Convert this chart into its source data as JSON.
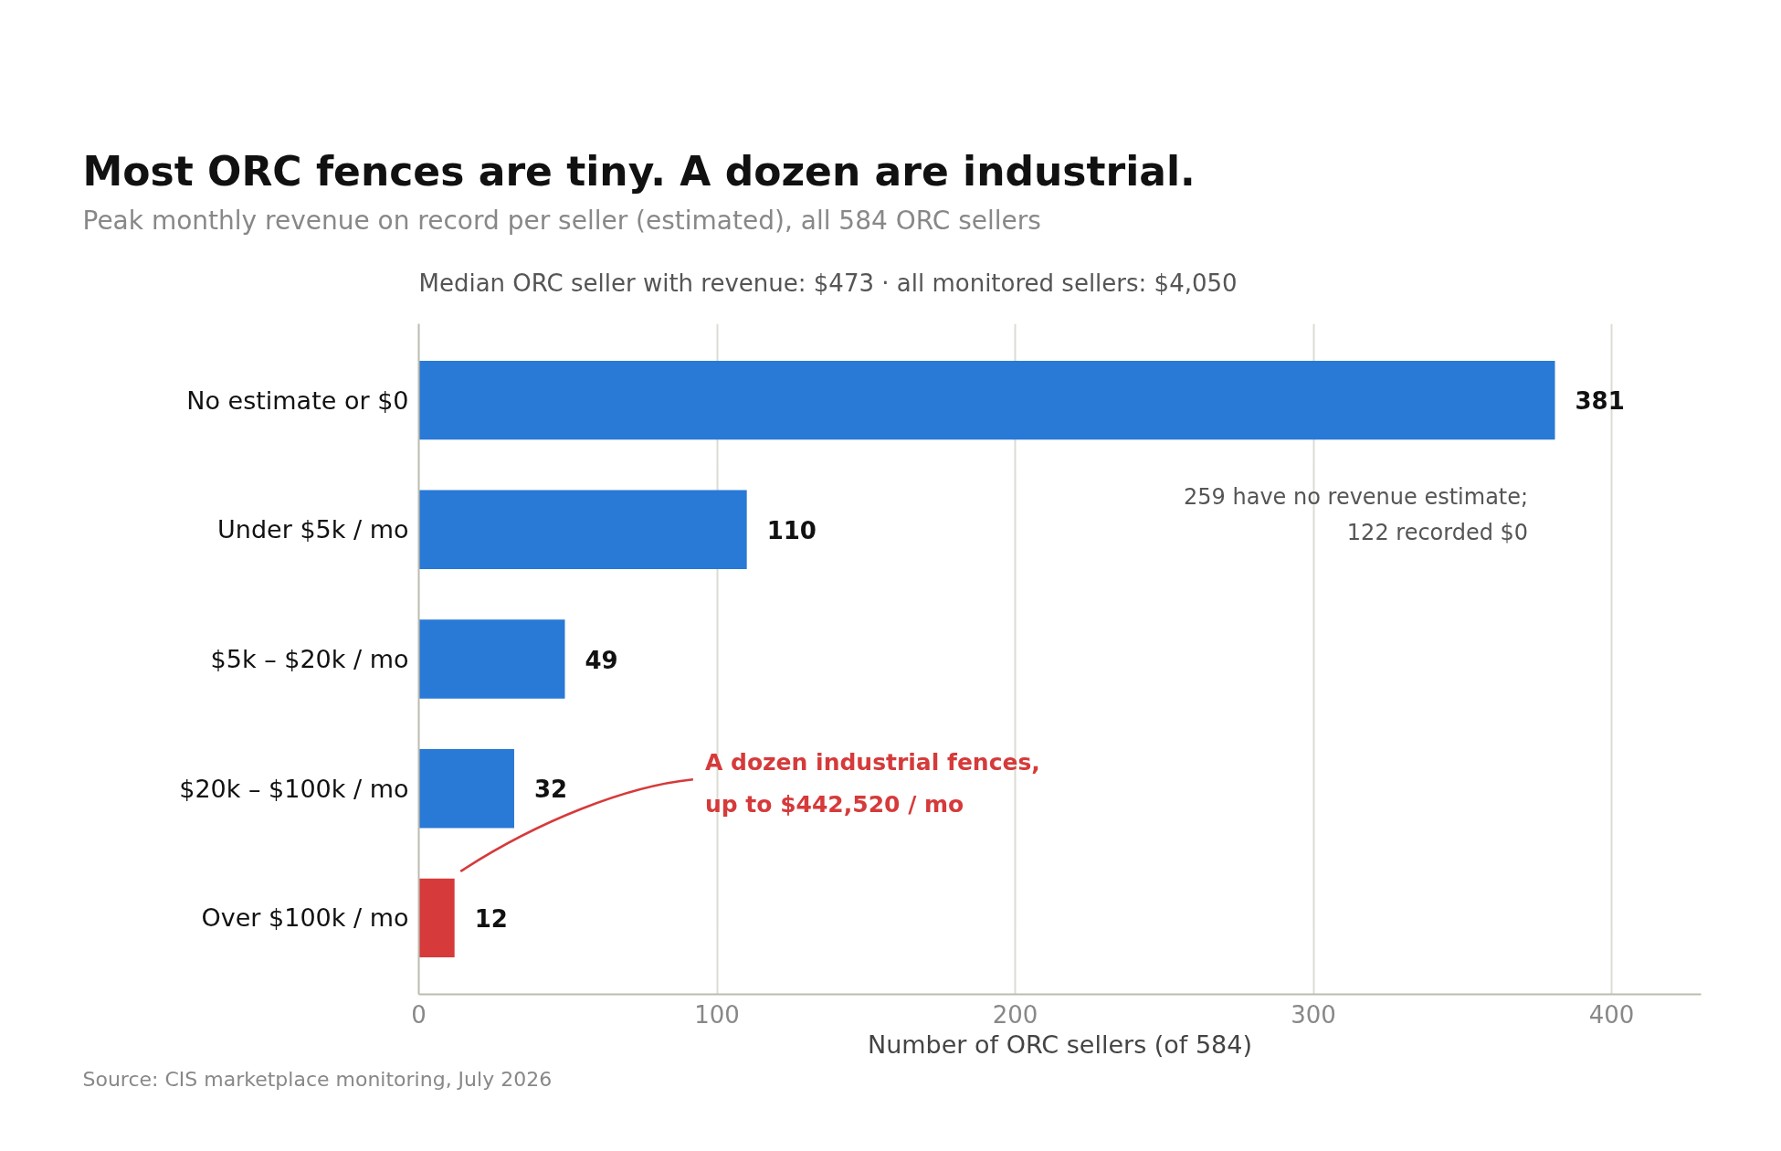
{
  "chart_data": {
    "type": "bar",
    "orientation": "horizontal",
    "title": "Most ORC fences are tiny. A dozen are industrial.",
    "subtitle": "Peak monthly revenue on record per seller (estimated), all 584 ORC sellers",
    "xlabel": "Number of ORC sellers (of 584)",
    "categories": [
      "No estimate or $0",
      "Under $5k / mo",
      "$5k – $20k / mo",
      "$20k – $100k / mo",
      "Over $100k / mo"
    ],
    "values": [
      381,
      110,
      49,
      32,
      12
    ],
    "colors": [
      "#2979d6",
      "#2979d6",
      "#2979d6",
      "#2979d6",
      "#d63a3a"
    ],
    "data_labels": true,
    "xlim": [
      0,
      430
    ],
    "xticks": [
      0,
      100,
      200,
      300,
      400
    ],
    "grid": "x",
    "annotations": [
      "Median ORC seller with revenue: $473   ·   all monitored sellers: $4,050",
      "259 have no revenue estimate;\n122 recorded $0",
      "A dozen industrial fences,\nup to $442,520 / mo",
      "Source: CIS marketplace monitoring, July 2026"
    ]
  }
}
